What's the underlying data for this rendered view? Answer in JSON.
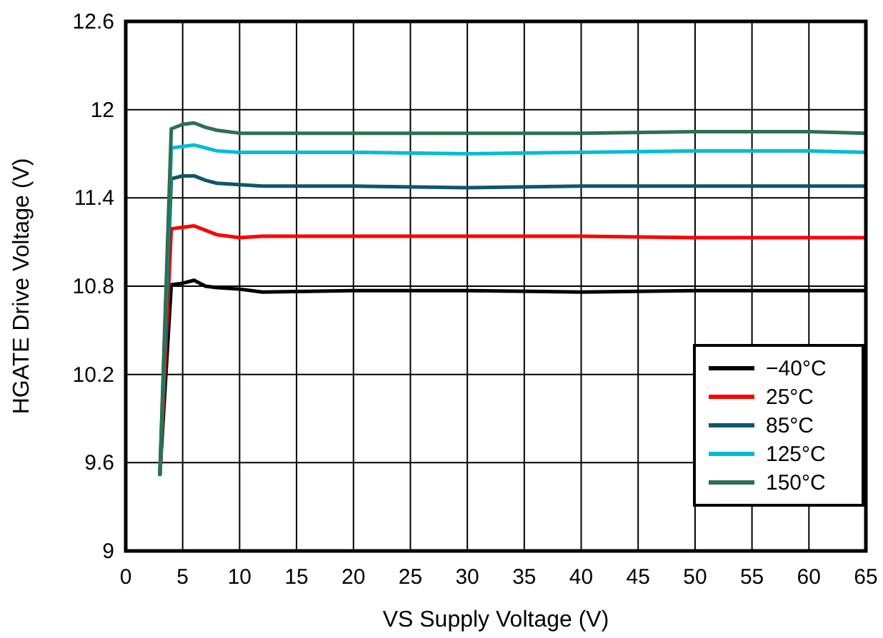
{
  "chart_data": {
    "type": "line",
    "xlabel": "VS Supply Voltage (V)",
    "ylabel": "HGATE Drive Voltage (V)",
    "xlim": [
      0,
      65
    ],
    "xticks": [
      0,
      5,
      10,
      15,
      20,
      25,
      30,
      35,
      40,
      45,
      50,
      55,
      60,
      65
    ],
    "ylim": [
      9,
      12.6
    ],
    "yticks": [
      9,
      9.6,
      10.2,
      10.8,
      11.4,
      12,
      12.6
    ],
    "grid": true,
    "legend": "bottom right",
    "marker": "none",
    "line_style": "solid",
    "x": [
      3,
      4,
      5,
      6,
      7,
      8,
      10,
      12,
      20,
      30,
      40,
      50,
      60,
      65
    ],
    "series": [
      {
        "name": "−40°C",
        "color": "#000000",
        "values": [
          9.52,
          10.81,
          10.82,
          10.84,
          10.8,
          10.79,
          10.78,
          10.76,
          10.77,
          10.77,
          10.76,
          10.77,
          10.77,
          10.77
        ]
      },
      {
        "name": "25°C",
        "color": "#ff0000",
        "values": [
          9.52,
          11.19,
          11.2,
          11.21,
          11.18,
          11.15,
          11.13,
          11.14,
          11.14,
          11.14,
          11.14,
          11.13,
          11.13,
          11.13
        ]
      },
      {
        "name": "85°C",
        "color": "#0f566a",
        "values": [
          9.52,
          11.53,
          11.55,
          11.55,
          11.52,
          11.5,
          11.49,
          11.48,
          11.48,
          11.47,
          11.48,
          11.48,
          11.48,
          11.48
        ]
      },
      {
        "name": "125°C",
        "color": "#00bcd4",
        "values": [
          9.52,
          11.74,
          11.75,
          11.76,
          11.74,
          11.72,
          11.71,
          11.71,
          11.71,
          11.7,
          11.71,
          11.72,
          11.72,
          11.71
        ]
      },
      {
        "name": "150°C",
        "color": "#2e7050",
        "values": [
          9.52,
          11.87,
          11.9,
          11.91,
          11.88,
          11.86,
          11.84,
          11.84,
          11.84,
          11.84,
          11.84,
          11.85,
          11.85,
          11.84
        ]
      }
    ]
  }
}
